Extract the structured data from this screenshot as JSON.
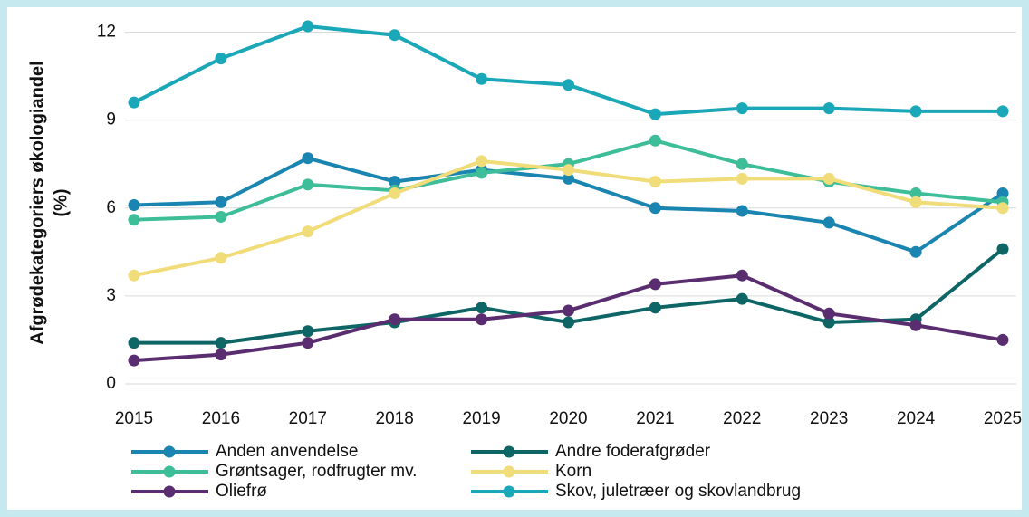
{
  "chart_data": {
    "type": "line",
    "ylabel": [
      "Afgrødekategoriers økologiandel",
      "(%)"
    ],
    "x": [
      2015,
      2016,
      2017,
      2018,
      2019,
      2020,
      2021,
      2022,
      2023,
      2024,
      2025
    ],
    "xlim": [
      2015,
      2025
    ],
    "xticks": [
      2015,
      2016,
      2017,
      2018,
      2019,
      2020,
      2021,
      2022,
      2023,
      2024,
      2025
    ],
    "ylim": [
      0,
      12.2
    ],
    "yticks": [
      0,
      3,
      6,
      9,
      12
    ],
    "grid": true,
    "legend": "bottom",
    "series": [
      {
        "name": "Anden anvendelse",
        "color": "#1a85b0",
        "values": [
          6.1,
          6.2,
          7.7,
          6.9,
          7.3,
          7.0,
          6.0,
          5.9,
          5.5,
          4.5,
          6.5
        ]
      },
      {
        "name": "Andre foderafgrøder",
        "color": "#0e6565",
        "values": [
          1.4,
          1.4,
          1.8,
          2.1,
          2.6,
          2.1,
          2.6,
          2.9,
          2.1,
          2.2,
          4.6
        ]
      },
      {
        "name": "Grøntsager, rodfrugter mv.",
        "color": "#3dbd98",
        "values": [
          5.6,
          5.7,
          6.8,
          6.6,
          7.2,
          7.5,
          8.3,
          7.5,
          6.9,
          6.5,
          6.2
        ]
      },
      {
        "name": "Korn",
        "color": "#f0dc78",
        "values": [
          3.7,
          4.3,
          5.2,
          6.5,
          7.6,
          7.3,
          6.9,
          7.0,
          7.0,
          6.2,
          6.0
        ]
      },
      {
        "name": "Oliefrø",
        "color": "#5a2d70",
        "values": [
          0.8,
          1.0,
          1.4,
          2.2,
          2.2,
          2.5,
          3.4,
          3.7,
          2.4,
          2.0,
          1.5
        ]
      },
      {
        "name": "Skov, juletræer og skovlandbrug",
        "color": "#1aa7b8",
        "values": [
          9.6,
          11.1,
          12.2,
          11.9,
          10.4,
          10.2,
          9.2,
          9.4,
          9.4,
          9.3,
          9.3
        ]
      }
    ]
  }
}
